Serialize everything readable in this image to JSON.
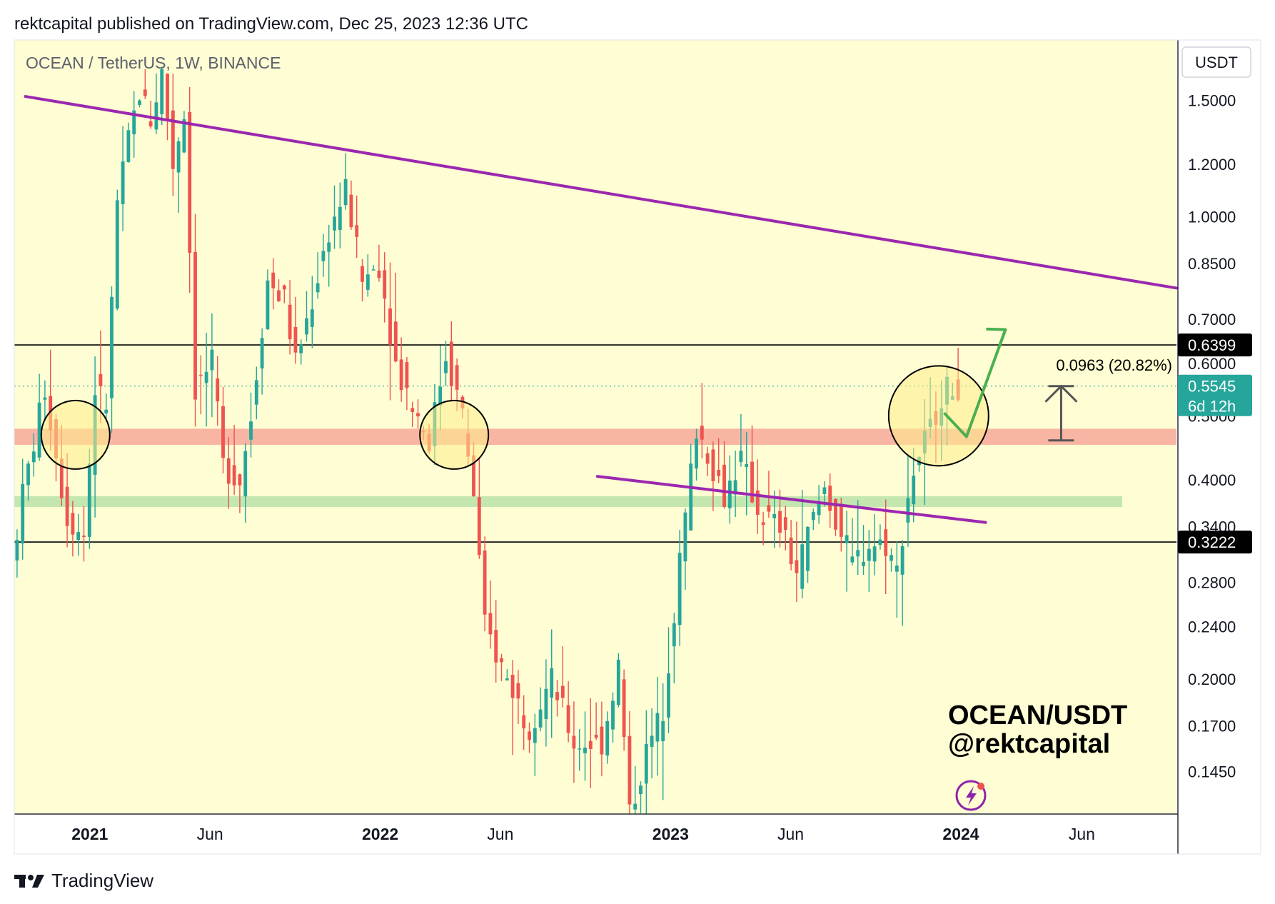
{
  "header": {
    "published": "rektcapital published on TradingView.com, Dec 25, 2023 12:36 UTC"
  },
  "symbol_title": "OCEAN / TetherUS, 1W, BINANCE",
  "currency_button": "USDT",
  "watermark": {
    "line1": "OCEAN/USDT",
    "line2": "@rektcapital"
  },
  "footer": {
    "brand": "TradingView"
  },
  "colors": {
    "background": "#fffdd3",
    "bull": "#26a69a",
    "bear": "#ef5350",
    "trendline": "#9c27b0",
    "red_zone": "#f8a89a",
    "green_zone": "#b8e3a8",
    "arrow": "#4caf50",
    "last_price_tag": "#26a69a",
    "level_tag": "#000000"
  },
  "chart_data": {
    "type": "candlestick",
    "title": "OCEAN / TetherUS, 1W, BINANCE",
    "scale": "log",
    "ylim": [
      0.125,
      1.85
    ],
    "y_ticks": [
      1.5,
      1.2,
      1.0,
      0.85,
      0.7,
      0.6,
      0.5,
      0.4,
      0.34,
      0.28,
      0.24,
      0.2,
      0.17,
      0.145
    ],
    "y_tick_labels": [
      "1.5000",
      "1.2000",
      "1.0000",
      "0.8500",
      "0.7000",
      "0.6000",
      "0.5000",
      "0.4000",
      "0.3400",
      "0.2800",
      "0.2400",
      "0.2000",
      "0.1700",
      "0.1450"
    ],
    "x_ticks": [
      {
        "date": "2021-01-01",
        "label": "2021",
        "bold": true
      },
      {
        "date": "2021-06-01",
        "label": "Jun",
        "bold": false
      },
      {
        "date": "2022-01-01",
        "label": "2022",
        "bold": true
      },
      {
        "date": "2022-06-01",
        "label": "Jun",
        "bold": false
      },
      {
        "date": "2023-01-01",
        "label": "2023",
        "bold": true
      },
      {
        "date": "2023-06-01",
        "label": "Jun",
        "bold": false
      },
      {
        "date": "2024-01-01",
        "label": "2024",
        "bold": true
      },
      {
        "date": "2024-06-01",
        "label": "Jun",
        "bold": false
      }
    ],
    "xlim": [
      "2020-09-28",
      "2024-09-28"
    ],
    "price_levels": [
      {
        "value": 0.6399,
        "label": "0.6399"
      },
      {
        "value": 0.3222,
        "label": "0.3222"
      }
    ],
    "last_price": {
      "value": 0.5545,
      "label": "0.5545",
      "countdown": "6d 12h"
    },
    "measure_label": "0.0963 (20.82%)",
    "trendlines": [
      {
        "from": [
          "2020-10-12",
          1.52
        ],
        "to": [
          "2024-09-28",
          0.78
        ]
      },
      {
        "from": [
          "2022-10-01",
          0.405
        ],
        "to": [
          "2024-02-01",
          0.345
        ]
      }
    ],
    "zones": [
      {
        "name": "resistance-turned-support",
        "low": 0.452,
        "high": 0.478,
        "color": "red"
      },
      {
        "name": "support",
        "low": 0.364,
        "high": 0.378,
        "color": "green"
      }
    ],
    "circles": [
      {
        "date": "2020-12-14",
        "price": 0.468
      },
      {
        "date": "2022-04-04",
        "price": 0.468
      },
      {
        "date": "2023-12-04",
        "price": 0.5
      }
    ],
    "projection": {
      "from": [
        "2023-12-11",
        0.505
      ],
      "via": [
        "2024-01-08",
        0.465
      ],
      "to": [
        "2024-02-26",
        0.675
      ]
    },
    "range_marker": {
      "date": "2024-05-06",
      "top": 0.5545,
      "bottom": 0.459
    },
    "anchors": [
      {
        "date": "2020-09-28",
        "price": 0.3
      },
      {
        "date": "2020-10-12",
        "price": 0.38
      },
      {
        "date": "2020-11-09",
        "price": 0.55
      },
      {
        "date": "2020-12-07",
        "price": 0.35
      },
      {
        "date": "2020-12-28",
        "price": 0.33
      },
      {
        "date": "2021-01-11",
        "price": 0.55
      },
      {
        "date": "2021-01-25",
        "price": 0.52
      },
      {
        "date": "2021-02-08",
        "price": 1.05
      },
      {
        "date": "2021-02-22",
        "price": 1.3
      },
      {
        "date": "2021-03-08",
        "price": 1.55
      },
      {
        "date": "2021-03-22",
        "price": 1.4
      },
      {
        "date": "2021-04-05",
        "price": 1.65
      },
      {
        "date": "2021-04-19",
        "price": 1.2
      },
      {
        "date": "2021-05-03",
        "price": 1.45
      },
      {
        "date": "2021-05-17",
        "price": 0.55
      },
      {
        "date": "2021-06-07",
        "price": 0.6
      },
      {
        "date": "2021-06-21",
        "price": 0.42
      },
      {
        "date": "2021-07-12",
        "price": 0.4
      },
      {
        "date": "2021-07-26",
        "price": 0.5
      },
      {
        "date": "2021-08-16",
        "price": 0.8
      },
      {
        "date": "2021-09-06",
        "price": 0.75
      },
      {
        "date": "2021-09-20",
        "price": 0.6
      },
      {
        "date": "2021-10-11",
        "price": 0.75
      },
      {
        "date": "2021-11-01",
        "price": 0.95
      },
      {
        "date": "2021-11-22",
        "price": 1.1
      },
      {
        "date": "2021-12-13",
        "price": 0.8
      },
      {
        "date": "2022-01-03",
        "price": 0.85
      },
      {
        "date": "2022-01-24",
        "price": 0.6
      },
      {
        "date": "2022-02-14",
        "price": 0.52
      },
      {
        "date": "2022-03-07",
        "price": 0.46
      },
      {
        "date": "2022-03-28",
        "price": 0.62
      },
      {
        "date": "2022-04-18",
        "price": 0.5
      },
      {
        "date": "2022-05-02",
        "price": 0.38
      },
      {
        "date": "2022-05-16",
        "price": 0.24
      },
      {
        "date": "2022-06-13",
        "price": 0.2
      },
      {
        "date": "2022-07-11",
        "price": 0.17
      },
      {
        "date": "2022-08-08",
        "price": 0.2
      },
      {
        "date": "2022-09-05",
        "price": 0.16
      },
      {
        "date": "2022-10-10",
        "price": 0.16
      },
      {
        "date": "2022-10-31",
        "price": 0.21
      },
      {
        "date": "2022-11-14",
        "price": 0.125
      },
      {
        "date": "2022-12-05",
        "price": 0.155
      },
      {
        "date": "2022-12-26",
        "price": 0.18
      },
      {
        "date": "2023-01-16",
        "price": 0.3
      },
      {
        "date": "2023-02-06",
        "price": 0.48
      },
      {
        "date": "2023-02-20",
        "price": 0.44
      },
      {
        "date": "2023-03-13",
        "price": 0.38
      },
      {
        "date": "2023-04-03",
        "price": 0.43
      },
      {
        "date": "2023-04-24",
        "price": 0.36
      },
      {
        "date": "2023-05-22",
        "price": 0.34
      },
      {
        "date": "2023-06-12",
        "price": 0.29
      },
      {
        "date": "2023-06-26",
        "price": 0.33
      },
      {
        "date": "2023-07-17",
        "price": 0.39
      },
      {
        "date": "2023-08-07",
        "price": 0.33
      },
      {
        "date": "2023-08-21",
        "price": 0.3
      },
      {
        "date": "2023-09-11",
        "price": 0.32
      },
      {
        "date": "2023-10-02",
        "price": 0.32
      },
      {
        "date": "2023-10-16",
        "price": 0.29
      },
      {
        "date": "2023-10-30",
        "price": 0.38
      },
      {
        "date": "2023-11-13",
        "price": 0.44
      },
      {
        "date": "2023-11-27",
        "price": 0.48
      },
      {
        "date": "2023-12-11",
        "price": 0.54
      },
      {
        "date": "2023-12-25",
        "price": 0.5545
      }
    ]
  }
}
